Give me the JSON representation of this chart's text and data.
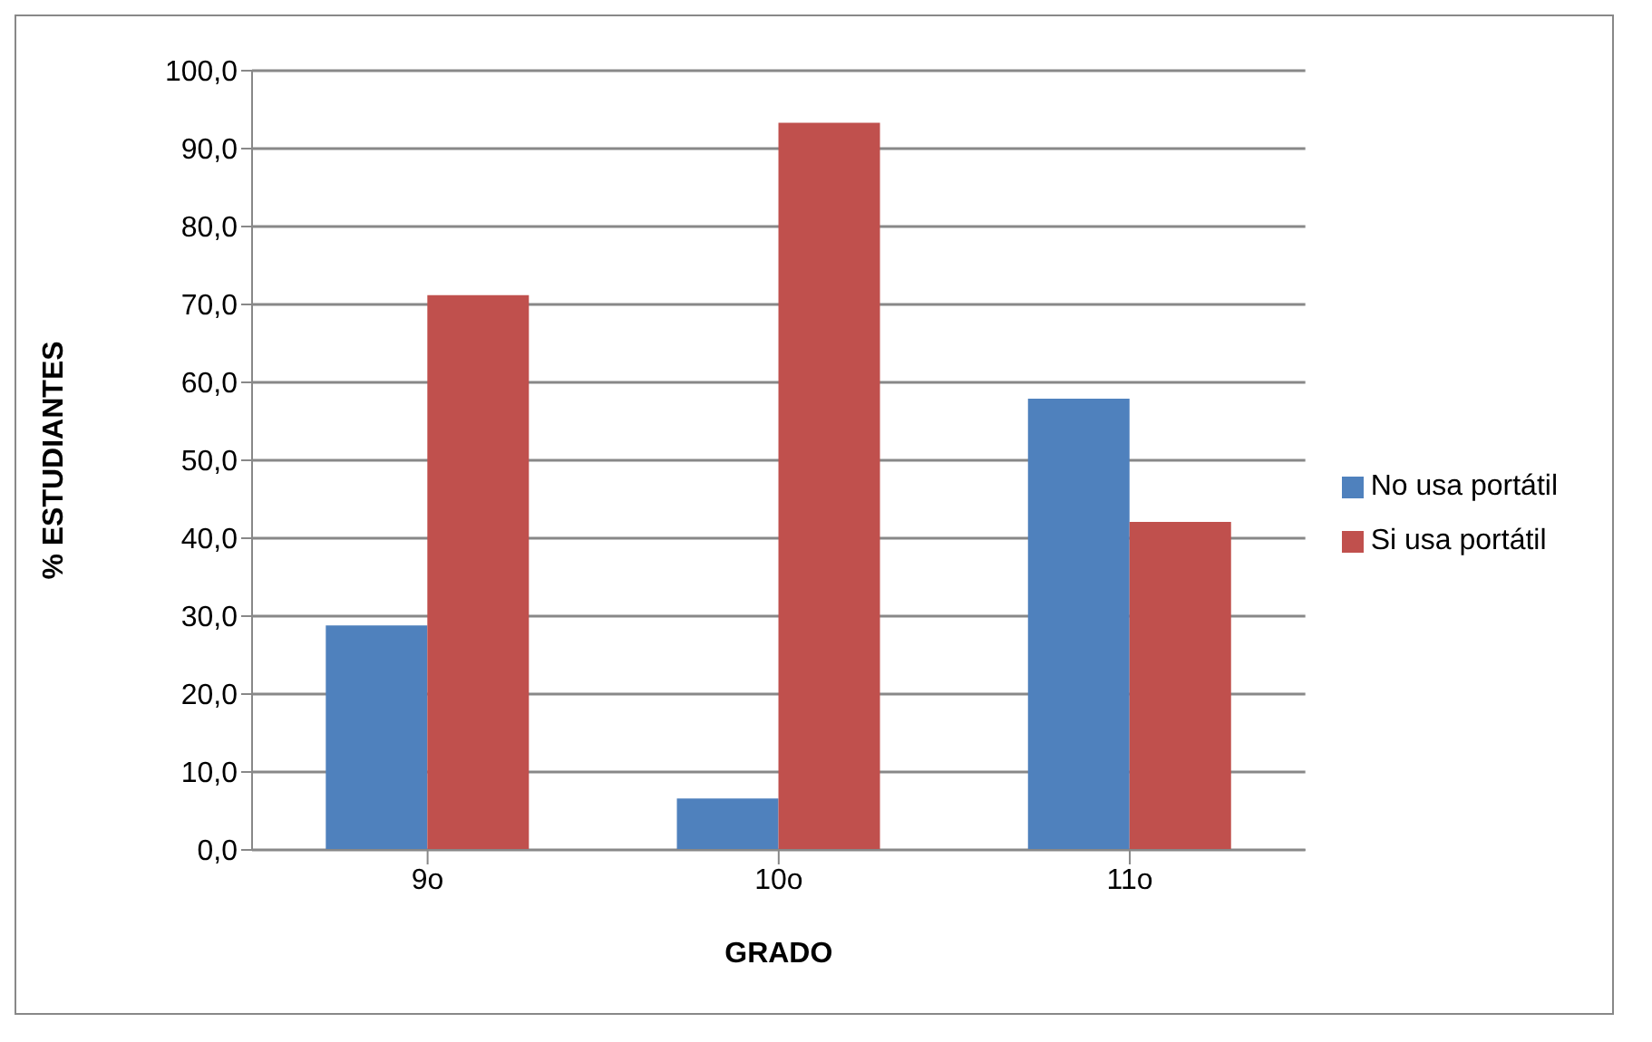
{
  "chart_data": {
    "type": "bar",
    "xlabel": "GRADO",
    "ylabel": "% ESTUDIANTES",
    "categories": [
      "9o",
      "10o",
      "11o"
    ],
    "series": [
      {
        "name": "No usa portátil",
        "color": "#4f81bd",
        "values": [
          28.8,
          6.6,
          57.9
        ]
      },
      {
        "name": "Si usa portátil",
        "color": "#c0504d",
        "values": [
          71.2,
          93.3,
          42.1
        ]
      }
    ],
    "ylim": [
      0,
      100
    ],
    "yticks": [
      {
        "value": 0,
        "label": "0,0"
      },
      {
        "value": 10,
        "label": "10,0"
      },
      {
        "value": 20,
        "label": "20,0"
      },
      {
        "value": 30,
        "label": "30,0"
      },
      {
        "value": 40,
        "label": "40,0"
      },
      {
        "value": 50,
        "label": "50,0"
      },
      {
        "value": 60,
        "label": "60,0"
      },
      {
        "value": 70,
        "label": "70,0"
      },
      {
        "value": 80,
        "label": "80,0"
      },
      {
        "value": 90,
        "label": "90,0"
      },
      {
        "value": 100,
        "label": "100,0"
      }
    ],
    "grid": "y",
    "legend": "right"
  }
}
